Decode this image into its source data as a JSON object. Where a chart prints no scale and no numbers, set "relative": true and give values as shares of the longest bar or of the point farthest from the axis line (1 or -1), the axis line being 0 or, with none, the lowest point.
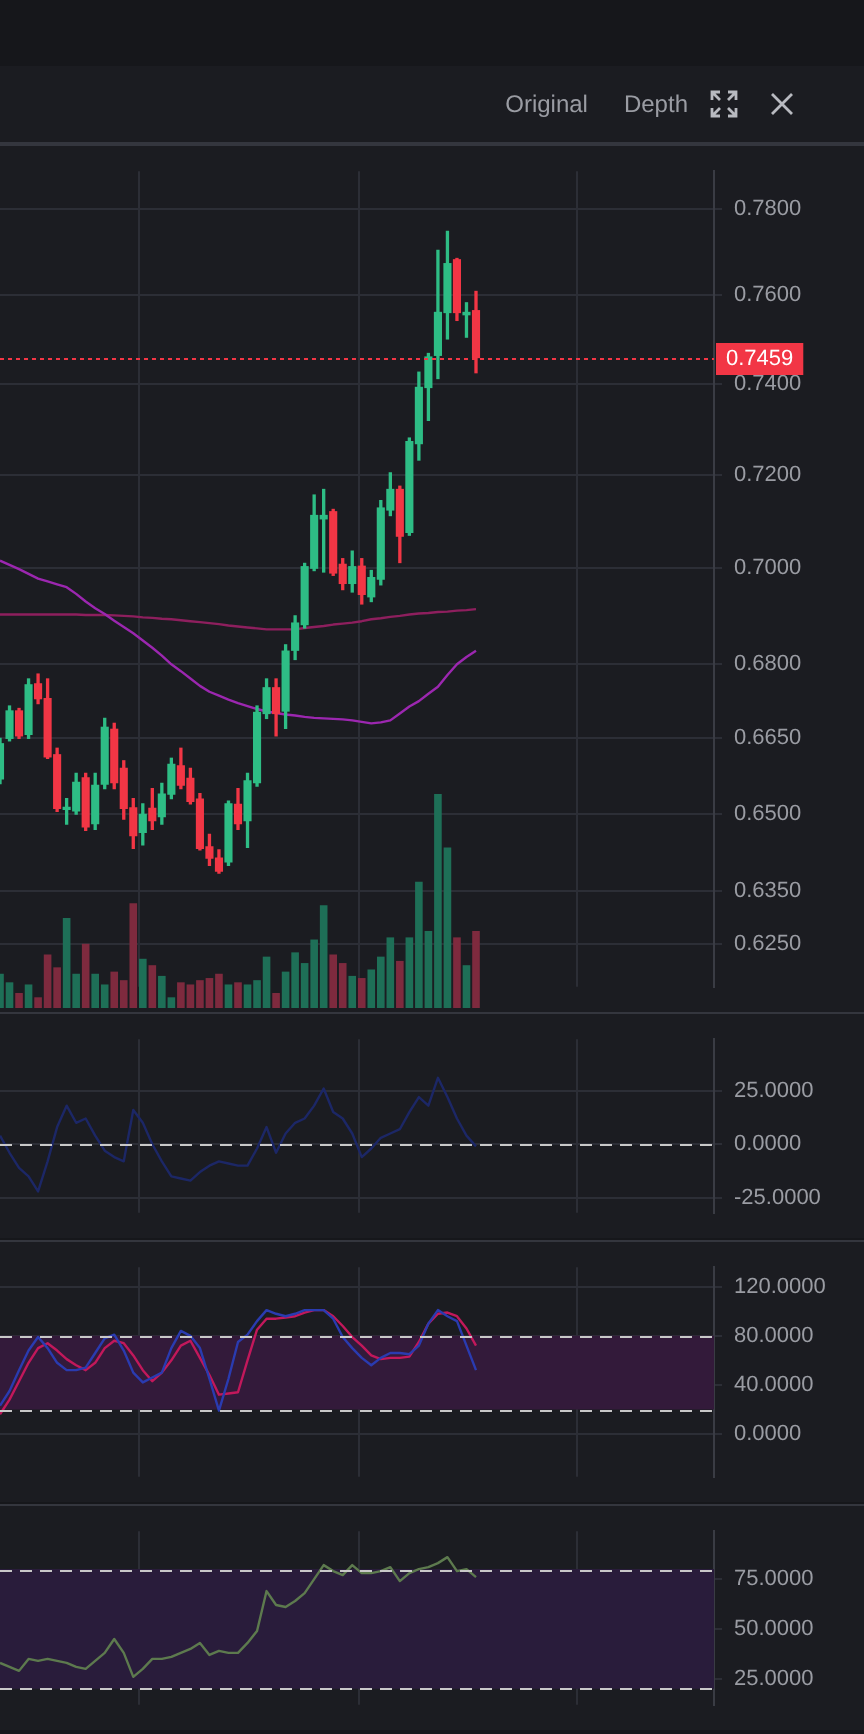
{
  "chart_data": [
    {
      "type": "candlestick",
      "categories": [
        null,
        null,
        null,
        null,
        null,
        null,
        null,
        null,
        null,
        null,
        null,
        null,
        null,
        null,
        null,
        null,
        null,
        null,
        null,
        null,
        null,
        null,
        null,
        null,
        null,
        null,
        null,
        null,
        null,
        null,
        null,
        null,
        null,
        null,
        null,
        null,
        null,
        null,
        null,
        null,
        null,
        null,
        null,
        null,
        null,
        null,
        null,
        null,
        null,
        null,
        null,
        null,
        null,
        null,
        null,
        null,
        null,
        null,
        null,
        null,
        null,
        null,
        null,
        null,
        null,
        null,
        null,
        null,
        null,
        null,
        null,
        null,
        null,
        null,
        null,
        null
      ],
      "series": [
        {
          "type": "line",
          "color": "#9c27b0",
          "values": [
            0.7016,
            0.7007,
            0.6998,
            0.6988,
            0.6978,
            0.6972,
            0.6966,
            0.696,
            0.6946,
            0.693,
            0.6916,
            0.6904,
            0.689,
            0.6877,
            0.6864,
            0.6849,
            0.6834,
            0.6818,
            0.68,
            0.6786,
            0.6771,
            0.6756,
            0.6744,
            0.6736,
            0.6728,
            0.6721,
            0.6715,
            0.6709,
            0.6704,
            0.6701,
            0.6698,
            0.6696,
            0.6693,
            0.6691,
            0.669,
            0.6689,
            0.6688,
            0.6686,
            0.6683,
            0.668,
            0.6682,
            0.6686,
            0.67,
            0.6714,
            0.6725,
            0.674,
            0.6754,
            0.6778,
            0.68,
            0.6815,
            0.6828,
            null,
            null,
            null,
            null,
            null,
            null,
            null,
            null,
            null,
            null,
            null,
            null,
            null,
            null,
            null,
            null,
            null,
            null,
            null,
            null,
            null,
            null,
            null,
            null,
            null
          ]
        },
        {
          "type": "line",
          "color": "#8e1f5e",
          "values": [
            0.6903,
            0.6903,
            0.6903,
            0.6903,
            0.6903,
            0.6903,
            0.6903,
            0.6903,
            0.6903,
            0.6902,
            0.6902,
            0.6902,
            0.6901,
            0.69,
            0.6899,
            0.6897,
            0.6896,
            0.6894,
            0.6893,
            0.6891,
            0.6889,
            0.6887,
            0.6885,
            0.6883,
            0.688,
            0.6878,
            0.6876,
            0.6874,
            0.6872,
            0.6872,
            0.6872,
            0.6872,
            0.6875,
            0.6877,
            0.6879,
            0.6882,
            0.6884,
            0.6886,
            0.6889,
            0.6893,
            0.6895,
            0.6898,
            0.69,
            0.6903,
            0.6905,
            0.6906,
            0.6908,
            0.6909,
            0.6911,
            0.6912,
            0.6914,
            null,
            null,
            null,
            null,
            null,
            null,
            null,
            null,
            null,
            null,
            null,
            null,
            null,
            null,
            null,
            null,
            null,
            null,
            null,
            null,
            null,
            null,
            null,
            null,
            null
          ]
        },
        {
          "type": "candlestick",
          "colors": [
            "#2ebd85",
            "#2ebd85",
            "#f23645",
            "#2ebd85",
            "#f23645",
            "#f23645",
            "#f23645",
            "#2ebd85",
            "#2ebd85",
            "#f23645",
            "#2ebd85",
            "#2ebd85",
            "#f23645",
            "#f23645",
            "#f23645",
            "#2ebd85",
            "#f23645",
            "#2ebd85",
            "#2ebd85",
            "#f23645",
            "#f23645",
            "#f23645",
            "#f23645",
            "#f23645",
            "#2ebd85",
            "#f23645",
            "#2ebd85",
            "#2ebd85",
            "#2ebd85",
            "#f23645",
            "#2ebd85",
            "#2ebd85",
            "#2ebd85",
            "#2ebd85",
            "#2ebd85",
            "#f23645",
            "#f23645",
            "#2ebd85",
            "#f23645",
            "#2ebd85",
            "#2ebd85",
            "#2ebd85",
            "#f23645",
            "#2ebd85",
            "#2ebd85",
            "#2ebd85",
            "#2ebd85",
            "#2ebd85",
            "#f23645",
            "#2ebd85",
            "#f23645",
            null,
            null,
            null,
            null,
            null,
            null,
            null,
            null,
            null,
            null,
            null,
            null,
            null,
            null,
            null,
            null,
            null,
            null,
            null,
            null,
            null,
            null,
            null,
            null,
            null
          ],
          "ohlc": [
            [
              0.6569,
              0.665,
              0.656,
              0.6639
            ],
            [
              0.665,
              0.6715,
              0.6645,
              0.6705
            ],
            [
              0.6705,
              0.671,
              0.665,
              0.6655
            ],
            [
              0.6658,
              0.677,
              0.665,
              0.6758
            ],
            [
              0.676,
              0.678,
              0.672,
              0.673
            ],
            [
              0.673,
              0.677,
              0.661,
              0.6613
            ],
            [
              0.6617,
              0.663,
              0.6505,
              0.6511
            ],
            [
              0.6509,
              0.653,
              0.648,
              0.6511
            ],
            [
              0.6506,
              0.658,
              0.65,
              0.6562
            ],
            [
              0.6571,
              0.658,
              0.6468,
              0.6475
            ],
            [
              0.6481,
              0.658,
              0.647,
              0.6556
            ],
            [
              0.6559,
              0.669,
              0.655,
              0.6672
            ],
            [
              0.6668,
              0.668,
              0.655,
              0.6562
            ],
            [
              0.659,
              0.6605,
              0.649,
              0.6511
            ],
            [
              0.6512,
              0.653,
              0.6433,
              0.6458
            ],
            [
              0.6464,
              0.652,
              0.644,
              0.6499
            ],
            [
              0.6511,
              0.655,
              0.647,
              0.6487
            ],
            [
              0.6495,
              0.656,
              0.648,
              0.6539
            ],
            [
              0.6539,
              0.661,
              0.653,
              0.6598
            ],
            [
              0.6595,
              0.663,
              0.655,
              0.6557
            ],
            [
              0.657,
              0.659,
              0.652,
              0.6525
            ],
            [
              0.6529,
              0.654,
              0.643,
              0.6433
            ],
            [
              0.6436,
              0.646,
              0.64,
              0.6414
            ],
            [
              0.6414,
              0.643,
              0.6385,
              0.6389
            ],
            [
              0.6407,
              0.6525,
              0.64,
              0.652
            ],
            [
              0.6519,
              0.655,
              0.647,
              0.6481
            ],
            [
              0.6487,
              0.658,
              0.6435,
              0.6565
            ],
            [
              0.6562,
              0.6715,
              0.6555,
              0.6702
            ],
            [
              0.67,
              0.677,
              0.669,
              0.6752
            ],
            [
              0.6752,
              0.677,
              0.6655,
              0.67
            ],
            [
              0.6705,
              0.684,
              0.667,
              0.6827
            ],
            [
              0.6829,
              0.69,
              0.681,
              0.6885
            ],
            [
              0.6882,
              0.701,
              0.6875,
              0.7003
            ],
            [
              0.7,
              0.7156,
              0.6995,
              0.7112
            ],
            [
              0.7105,
              0.7168,
              0.6992,
              0.7112
            ],
            [
              0.712,
              0.7125,
              0.6985,
              0.699
            ],
            [
              0.7008,
              0.702,
              0.6955,
              0.6968
            ],
            [
              0.6968,
              0.7036,
              0.695,
              0.7003
            ],
            [
              0.7004,
              0.702,
              0.6925,
              0.6945
            ],
            [
              0.694,
              0.6995,
              0.693,
              0.698
            ],
            [
              0.6977,
              0.7144,
              0.6965,
              0.7128
            ],
            [
              0.7124,
              0.7204,
              0.7112,
              0.7168
            ],
            [
              0.7168,
              0.7175,
              0.7012,
              0.7068
            ],
            [
              0.7076,
              0.728,
              0.707,
              0.7272
            ],
            [
              0.7268,
              0.7426,
              0.7232,
              0.7392
            ],
            [
              0.7392,
              0.7468,
              0.7319,
              0.746
            ],
            [
              0.7464,
              0.7704,
              0.7412,
              0.7561
            ],
            [
              0.7561,
              0.7748,
              0.7501,
              0.7673
            ],
            [
              0.7682,
              0.7685,
              0.7543,
              0.7561
            ],
            [
              0.7556,
              0.7583,
              0.7505,
              0.7561
            ],
            [
              0.7565,
              0.7609,
              0.7425,
              0.7459
            ],
            null,
            null,
            null,
            null,
            null,
            null,
            null,
            null,
            null,
            null,
            null,
            null,
            null,
            null,
            null,
            null,
            null,
            null,
            null,
            null,
            null,
            null,
            null,
            null,
            null
          ]
        }
      ],
      "ylim": [
        0.617,
        0.789
      ],
      "log": true,
      "yticks": [
        {
          "value": 0.625,
          "label": "0.6250"
        },
        {
          "value": 0.635,
          "label": "0.6350"
        },
        {
          "value": 0.65,
          "label": "0.6500"
        },
        {
          "value": 0.665,
          "label": "0.6650"
        },
        {
          "value": 0.68,
          "label": "0.6800"
        },
        {
          "value": 0.7,
          "label": "0.7000"
        },
        {
          "value": 0.72,
          "label": "0.7200"
        },
        {
          "value": 0.74,
          "label": "0.7400"
        },
        {
          "value": 0.76,
          "label": "0.7600"
        },
        {
          "value": 0.78,
          "label": "0.7800"
        }
      ],
      "ref_lines": [
        {
          "axis": "y",
          "value": 0.7459,
          "label": "0.7459",
          "color": "#f23645",
          "line_style": "dotted"
        }
      ],
      "grid": true,
      "tick_labels": "y",
      "annotations": [
        "Original",
        "Depth"
      ]
    },
    {
      "type": "bar",
      "relative": true,
      "tick_labels": false,
      "categories": [
        null,
        null,
        null,
        null,
        null,
        null,
        null,
        null,
        null,
        null,
        null,
        null,
        null,
        null,
        null,
        null,
        null,
        null,
        null,
        null,
        null,
        null,
        null,
        null,
        null,
        null,
        null,
        null,
        null,
        null,
        null,
        null,
        null,
        null,
        null,
        null,
        null,
        null,
        null,
        null,
        null,
        null,
        null,
        null,
        null,
        null,
        null,
        null,
        null,
        null,
        null,
        null,
        null,
        null,
        null,
        null,
        null,
        null,
        null,
        null,
        null,
        null,
        null,
        null,
        null,
        null,
        null,
        null,
        null,
        null,
        null,
        null,
        null,
        null,
        null,
        null
      ],
      "values": [
        0.16,
        0.12,
        0.07,
        0.11,
        0.05,
        0.25,
        0.19,
        0.42,
        0.16,
        0.3,
        0.16,
        0.11,
        0.17,
        0.13,
        0.49,
        0.23,
        0.2,
        0.15,
        0.05,
        0.12,
        0.11,
        0.13,
        0.14,
        0.16,
        0.11,
        0.12,
        0.11,
        0.13,
        0.24,
        0.07,
        0.17,
        0.26,
        0.21,
        0.32,
        0.48,
        0.25,
        0.21,
        0.15,
        0.14,
        0.18,
        0.24,
        0.33,
        0.22,
        0.33,
        0.59,
        0.36,
        1,
        0.75,
        0.33,
        0.2,
        0.36,
        null,
        null,
        null,
        null,
        null,
        null,
        null,
        null,
        null,
        null,
        null,
        null,
        null,
        null,
        null,
        null,
        null,
        null,
        null,
        null,
        null,
        null,
        null,
        null,
        null
      ],
      "colors": [
        "#1e6f57",
        "#1e6f57",
        "#7e2a3e",
        "#1e6f57",
        "#7e2a3e",
        "#7e2a3e",
        "#7e2a3e",
        "#1e6f57",
        "#1e6f57",
        "#7e2a3e",
        "#1e6f57",
        "#1e6f57",
        "#7e2a3e",
        "#7e2a3e",
        "#7e2a3e",
        "#1e6f57",
        "#7e2a3e",
        "#1e6f57",
        "#1e6f57",
        "#7e2a3e",
        "#7e2a3e",
        "#7e2a3e",
        "#7e2a3e",
        "#7e2a3e",
        "#1e6f57",
        "#7e2a3e",
        "#1e6f57",
        "#1e6f57",
        "#1e6f57",
        "#7e2a3e",
        "#1e6f57",
        "#1e6f57",
        "#1e6f57",
        "#1e6f57",
        "#1e6f57",
        "#7e2a3e",
        "#7e2a3e",
        "#1e6f57",
        "#7e2a3e",
        "#1e6f57",
        "#1e6f57",
        "#1e6f57",
        "#7e2a3e",
        "#1e6f57",
        "#1e6f57",
        "#1e6f57",
        "#1e6f57",
        "#1e6f57",
        "#7e2a3e",
        "#1e6f57",
        "#7e2a3e",
        null,
        null,
        null,
        null,
        null,
        null,
        null,
        null,
        null,
        null,
        null,
        null,
        null,
        null,
        null,
        null,
        null,
        null,
        null,
        null,
        null,
        null,
        null,
        null,
        null
      ]
    },
    {
      "type": "line",
      "categories": [
        null,
        null,
        null,
        null,
        null,
        null,
        null,
        null,
        null,
        null,
        null,
        null,
        null,
        null,
        null,
        null,
        null,
        null,
        null,
        null,
        null,
        null,
        null,
        null,
        null,
        null,
        null,
        null,
        null,
        null,
        null,
        null,
        null,
        null,
        null,
        null,
        null,
        null,
        null,
        null,
        null,
        null,
        null,
        null,
        null,
        null,
        null,
        null,
        null,
        null,
        null,
        null,
        null,
        null,
        null,
        null,
        null,
        null,
        null,
        null,
        null,
        null,
        null,
        null,
        null,
        null,
        null,
        null,
        null,
        null,
        null,
        null,
        null,
        null,
        null,
        null
      ],
      "series": [
        {
          "color": "#1c2766",
          "values": [
            4,
            -4,
            -11,
            -15,
            -22,
            -8,
            8,
            18,
            10,
            12,
            4,
            -3,
            -6,
            -8,
            16,
            10,
            0,
            -8,
            -15,
            -16,
            -17,
            -13,
            -10,
            -8,
            -9,
            -10,
            -10,
            -2,
            8,
            -4,
            5,
            10,
            12,
            18,
            26,
            15,
            12,
            5,
            -6,
            -2,
            3,
            5,
            7,
            15,
            22,
            18,
            31,
            22,
            12,
            4,
            -1,
            null,
            null,
            null,
            null,
            null,
            null,
            null,
            null,
            null,
            null,
            null,
            null,
            null,
            null,
            null,
            null,
            null,
            null,
            null,
            null,
            null,
            null,
            null,
            null,
            null
          ]
        }
      ],
      "ylim": [
        -32,
        49
      ],
      "yticks": [
        {
          "value": -25,
          "label": "-25.0000"
        },
        {
          "value": 0,
          "label": "0.0000"
        },
        {
          "value": 25,
          "label": "25.0000"
        }
      ],
      "ref_lines": [
        {
          "axis": "y",
          "value": 0,
          "color": "#c8c8c8",
          "line_style": "dashed"
        }
      ],
      "grid": true,
      "tick_labels": "y"
    },
    {
      "type": "line",
      "categories": [
        null,
        null,
        null,
        null,
        null,
        null,
        null,
        null,
        null,
        null,
        null,
        null,
        null,
        null,
        null,
        null,
        null,
        null,
        null,
        null,
        null,
        null,
        null,
        null,
        null,
        null,
        null,
        null,
        null,
        null,
        null,
        null,
        null,
        null,
        null,
        null,
        null,
        null,
        null,
        null,
        null,
        null,
        null,
        null,
        null,
        null,
        null,
        null,
        null,
        null,
        null,
        null,
        null,
        null,
        null,
        null,
        null,
        null,
        null,
        null,
        null,
        null,
        null,
        null,
        null,
        null,
        null,
        null,
        null,
        null,
        null,
        null,
        null,
        null,
        null,
        null
      ],
      "series": [
        {
          "color": "#2a3bb0",
          "values": [
            23,
            35,
            52,
            68,
            79,
            70,
            58,
            52,
            52,
            54,
            66,
            78,
            81,
            68,
            50,
            42,
            46,
            50,
            70,
            84,
            80,
            70,
            45,
            19,
            45,
            75,
            81,
            92,
            101,
            98,
            96,
            98,
            101,
            101,
            101,
            94,
            79,
            70,
            62,
            56,
            62,
            66,
            66,
            65,
            72,
            90,
            101,
            96,
            92,
            72,
            52,
            null,
            null,
            null,
            null,
            null,
            null,
            null,
            null,
            null,
            null,
            null,
            null,
            null,
            null,
            null,
            null,
            null,
            null,
            null,
            null,
            null,
            null,
            null,
            null,
            null
          ]
        },
        {
          "color": "#c2185b",
          "values": [
            16,
            28,
            43,
            58,
            70,
            74,
            68,
            61,
            56,
            52,
            58,
            70,
            76,
            74,
            64,
            52,
            43,
            50,
            60,
            72,
            76,
            62,
            48,
            32,
            33,
            34,
            60,
            85,
            94,
            94,
            95,
            96,
            99,
            101,
            101,
            96,
            88,
            79,
            72,
            64,
            61,
            62,
            62,
            63,
            75,
            90,
            98,
            99,
            96,
            86,
            72,
            null,
            null,
            null,
            null,
            null,
            null,
            null,
            null,
            null,
            null,
            null,
            null,
            null,
            null,
            null,
            null,
            null,
            null,
            null,
            null,
            null,
            null,
            null,
            null,
            null
          ]
        }
      ],
      "ylim": [
        -35,
        136
      ],
      "yticks": [
        {
          "value": 0,
          "label": "0.0000"
        },
        {
          "value": 40,
          "label": "40.0000"
        },
        {
          "value": 80,
          "label": "80.0000"
        },
        {
          "value": 120,
          "label": "120.0000"
        }
      ],
      "bands": [
        {
          "axis": "y",
          "from": 20,
          "to": 80,
          "color": "#331a3a"
        }
      ],
      "ref_lines": [
        {
          "axis": "y",
          "value": 80,
          "color": "#c8c8c8",
          "line_style": "dashed"
        },
        {
          "axis": "y",
          "value": 20,
          "color": "#c8c8c8",
          "line_style": "dashed"
        }
      ],
      "grid": true,
      "tick_labels": "y"
    },
    {
      "type": "line",
      "categories": [
        null,
        null,
        null,
        null,
        null,
        null,
        null,
        null,
        null,
        null,
        null,
        null,
        null,
        null,
        null,
        null,
        null,
        null,
        null,
        null,
        null,
        null,
        null,
        null,
        null,
        null,
        null,
        null,
        null,
        null,
        null,
        null,
        null,
        null,
        null,
        null,
        null,
        null,
        null,
        null,
        null,
        null,
        null,
        null,
        null,
        null,
        null,
        null,
        null,
        null,
        null,
        null,
        null,
        null,
        null,
        null,
        null,
        null,
        null,
        null,
        null,
        null,
        null,
        null,
        null,
        null,
        null,
        null,
        null,
        null,
        null,
        null,
        null,
        null,
        null,
        null
      ],
      "series": [
        {
          "color": "#5d7a4e",
          "values": [
            33,
            31,
            29,
            35,
            34,
            35,
            34,
            33,
            31,
            30,
            34,
            38,
            45,
            38,
            26,
            30,
            35,
            35,
            36,
            38,
            40,
            43,
            37,
            39,
            38,
            38,
            43,
            49,
            69,
            62,
            61,
            64,
            68,
            75,
            82,
            79,
            77,
            82,
            78,
            78,
            79,
            81,
            74,
            78,
            80,
            81,
            83,
            86,
            79,
            80,
            76,
            null,
            null,
            null,
            null,
            null,
            null,
            null,
            null,
            null,
            null,
            null,
            null,
            null,
            null,
            null,
            null,
            null,
            null,
            null,
            null,
            null,
            null,
            null,
            null,
            null
          ]
        }
      ],
      "ylim": [
        12,
        99
      ],
      "yticks": [
        {
          "value": 25,
          "label": "25.0000"
        },
        {
          "value": 50,
          "label": "50.0000"
        },
        {
          "value": 75,
          "label": "75.0000"
        }
      ],
      "bands": [
        {
          "axis": "y",
          "from": 20,
          "to": 80,
          "color": "#291c3b"
        }
      ],
      "ref_lines": [
        {
          "axis": "y",
          "value": 80,
          "color": "#c8c8c8",
          "line_style": "dashed"
        },
        {
          "axis": "y",
          "value": 20,
          "color": "#c8c8c8",
          "line_style": "dashed"
        }
      ],
      "grid": true,
      "tick_labels": "y"
    }
  ]
}
